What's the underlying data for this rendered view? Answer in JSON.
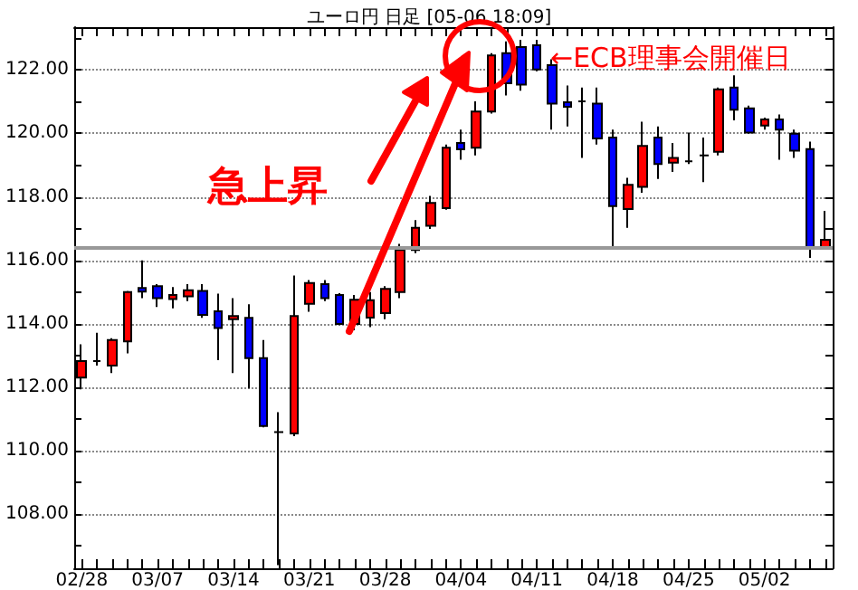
{
  "chart_data": {
    "type": "candlestick",
    "title": "ユーロ円 日足 [05-06 18:09]",
    "categories": [
      "02/28",
      null,
      null,
      null,
      null,
      "03/07",
      null,
      null,
      null,
      null,
      "03/14",
      null,
      null,
      null,
      null,
      "03/21",
      null,
      null,
      null,
      null,
      "03/28",
      null,
      null,
      null,
      null,
      "04/04",
      null,
      null,
      null,
      null,
      "04/11",
      null,
      null,
      null,
      null,
      "04/18",
      null,
      null,
      null,
      null,
      "04/25",
      null,
      null,
      null,
      null,
      "05/02",
      null,
      null,
      null,
      null
    ],
    "ohlc": [
      [
        112.31,
        113.36,
        111.94,
        112.83
      ],
      [
        112.83,
        113.72,
        112.69,
        112.83
      ],
      [
        112.69,
        113.55,
        112.45,
        113.49
      ],
      [
        113.45,
        115.04,
        113.07,
        115.0
      ],
      [
        115.13,
        116.0,
        114.81,
        115.02
      ],
      [
        115.19,
        115.25,
        114.53,
        114.81
      ],
      [
        114.78,
        115.16,
        114.49,
        114.91
      ],
      [
        114.87,
        115.25,
        114.72,
        115.06
      ],
      [
        115.04,
        115.25,
        114.19,
        114.28
      ],
      [
        114.4,
        114.95,
        112.86,
        113.87
      ],
      [
        114.15,
        114.81,
        112.45,
        114.25
      ],
      [
        114.19,
        114.62,
        111.97,
        112.92
      ],
      [
        112.92,
        113.49,
        110.74,
        110.78
      ],
      [
        110.59,
        111.22,
        106.4,
        110.59
      ],
      [
        110.55,
        115.52,
        110.46,
        114.25
      ],
      [
        114.63,
        115.38,
        114.38,
        115.29
      ],
      [
        115.25,
        115.38,
        114.72,
        114.81
      ],
      [
        114.91,
        114.97,
        113.96,
        114.0
      ],
      [
        114.0,
        114.91,
        113.8,
        114.76
      ],
      [
        114.2,
        115.0,
        113.9,
        114.75
      ],
      [
        114.34,
        115.19,
        114.15,
        115.1
      ],
      [
        115.0,
        116.52,
        114.81,
        116.33
      ],
      [
        116.33,
        117.27,
        116.23,
        117.03
      ],
      [
        117.09,
        118.03,
        116.99,
        117.81
      ],
      [
        117.65,
        119.65,
        117.6,
        119.55
      ],
      [
        119.7,
        120.12,
        119.17,
        119.5
      ],
      [
        119.55,
        121.01,
        119.31,
        120.69
      ],
      [
        120.69,
        122.53,
        120.63,
        122.46
      ],
      [
        122.53,
        122.9,
        121.2,
        121.58
      ],
      [
        122.72,
        122.95,
        121.35,
        121.54
      ],
      [
        122.78,
        122.95,
        121.96,
        122.02
      ],
      [
        122.15,
        122.34,
        120.12,
        120.94
      ],
      [
        120.98,
        121.51,
        120.22,
        120.84
      ],
      [
        121.01,
        121.45,
        119.23,
        121.01
      ],
      [
        120.94,
        121.45,
        119.65,
        119.84
      ],
      [
        119.87,
        120.12,
        116.42,
        117.71
      ],
      [
        117.62,
        118.6,
        117.03,
        118.38
      ],
      [
        118.32,
        120.37,
        118.13,
        119.61
      ],
      [
        119.87,
        120.22,
        118.57,
        119.04
      ],
      [
        119.08,
        119.7,
        118.79,
        119.23
      ],
      [
        119.12,
        120.03,
        119.04,
        119.12
      ],
      [
        119.31,
        119.87,
        118.47,
        119.31
      ],
      [
        119.42,
        121.45,
        119.31,
        121.39
      ],
      [
        121.45,
        121.83,
        120.41,
        120.75
      ],
      [
        120.79,
        120.88,
        119.99,
        120.03
      ],
      [
        120.25,
        120.5,
        120.12,
        120.44
      ],
      [
        120.44,
        120.6,
        119.17,
        120.12
      ],
      [
        119.99,
        120.12,
        119.23,
        119.46
      ],
      [
        119.51,
        119.74,
        116.08,
        116.42
      ],
      [
        116.42,
        117.56,
        116.38,
        116.65
      ]
    ],
    "colors": [
      "#ff0000",
      "#000000",
      "#ff0000",
      "#ff0000",
      "#0000ff",
      "#0000ff",
      "#ff0000",
      "#ff0000",
      "#0000ff",
      "#0000ff",
      "#ff0000",
      "#0000ff",
      "#0000ff",
      "#000000",
      "#ff0000",
      "#ff0000",
      "#0000ff",
      "#0000ff",
      "#ff0000",
      "#ff0000",
      "#ff0000",
      "#ff0000",
      "#ff0000",
      "#ff0000",
      "#ff0000",
      "#0000ff",
      "#ff0000",
      "#ff0000",
      "#0000ff",
      "#0000ff",
      "#0000ff",
      "#0000ff",
      "#0000ff",
      "#000000",
      "#0000ff",
      "#0000ff",
      "#ff0000",
      "#ff0000",
      "#0000ff",
      "#ff0000",
      "#000000",
      "#000000",
      "#ff0000",
      "#0000ff",
      "#0000ff",
      "#ff0000",
      "#0000ff",
      "#0000ff",
      "#0000ff",
      "#ff0000"
    ],
    "ylim": [
      106.3,
      123.35
    ],
    "yticks": [
      {
        "value": 107,
        "label": null
      },
      {
        "value": 108,
        "label": "108.00"
      },
      {
        "value": 109,
        "label": null
      },
      {
        "value": 110,
        "label": "110.00"
      },
      {
        "value": 111,
        "label": null
      },
      {
        "value": 112,
        "label": "112.00"
      },
      {
        "value": 113,
        "label": null
      },
      {
        "value": 114,
        "label": "114.00"
      },
      {
        "value": 115,
        "label": null
      },
      {
        "value": 116,
        "label": "116.00"
      },
      {
        "value": 117,
        "label": null
      },
      {
        "value": 118,
        "label": "118.00"
      },
      {
        "value": 119,
        "label": null
      },
      {
        "value": 120,
        "label": "120.00"
      },
      {
        "value": 121,
        "label": null
      },
      {
        "value": 122,
        "label": "122.00"
      },
      {
        "value": 123,
        "label": null
      }
    ],
    "grid": "y",
    "ref_lines": [
      {
        "axis": "y",
        "value": 116.42,
        "label": null,
        "color": "#999999"
      }
    ],
    "annotations": [
      "急上昇",
      "←ECB理事会開催日"
    ]
  }
}
